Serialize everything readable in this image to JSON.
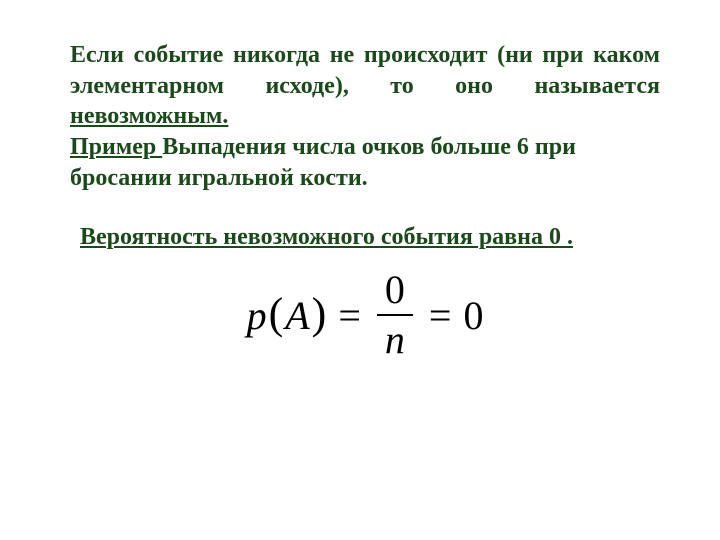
{
  "colors": {
    "text_main": "#1a4a1a",
    "formula": "#000000",
    "background": "#ffffff"
  },
  "typography": {
    "body_font": "Times New Roman",
    "body_size_pt": 18,
    "body_weight": "bold",
    "formula_size_pt": 30,
    "formula_style": "italic"
  },
  "para1": {
    "part1": "Если событие никогда не происходит (ни при каком элементарном исходе), то оно называется ",
    "underlined": "невозможным."
  },
  "para2": {
    "label_underlined": "Пример ",
    "rest": "Выпадения числа очков больше 6 при бросании игральной кости."
  },
  "para3": {
    "text": "Вероятность невозможного события равна 0 ."
  },
  "formula": {
    "p": "p",
    "lparen": "(",
    "A": "A",
    "rparen": ")",
    "eq1": "=",
    "num": "0",
    "den": "n",
    "eq2": "=",
    "rhs": "0"
  }
}
